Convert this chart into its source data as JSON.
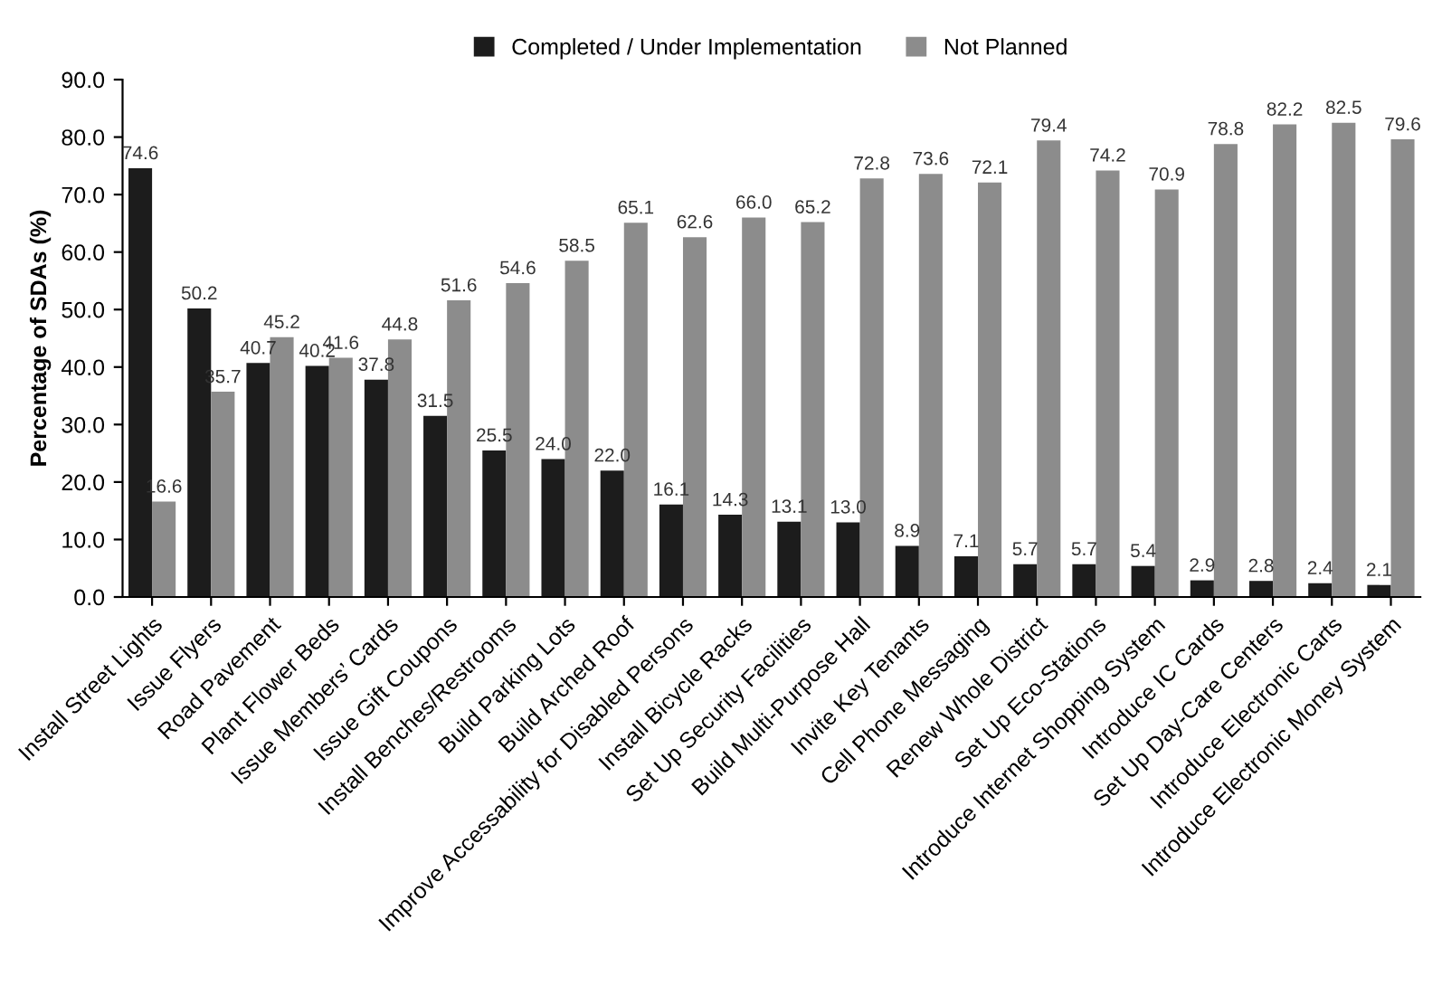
{
  "chart_data": {
    "type": "bar",
    "ylabel": "Percentage of SDAs (%)",
    "categories": [
      "Install Street Lights",
      "Issue Flyers",
      "Road Pavement",
      "Plant Flower Beds",
      "Issue Members’ Cards",
      "Issue Gift Coupons",
      "Install Benches/Restrooms",
      "Build Parking Lots",
      "Build Arched Roof",
      "Improve Accessability for Disabled Persons",
      "Install Bicycle Racks",
      "Set Up Security Facilities",
      "Build Multi-Purpose Hall",
      "Invite Key Tenants",
      "Cell Phone Messaging",
      "Renew Whole District",
      "Set Up Eco-Stations",
      "Introduce Internet Shopping System",
      "Introduce IC Cards",
      "Set Up Day-Care Centers",
      "Introduce Electronic Carts",
      "Introduce Electronic Money System"
    ],
    "series": [
      {
        "name": "Completed / Under Implementation",
        "color": "#1c1c1c",
        "values": [
          74.6,
          50.2,
          40.7,
          40.2,
          37.8,
          31.5,
          25.5,
          24.0,
          22.0,
          16.1,
          14.3,
          13.1,
          13.0,
          8.9,
          7.1,
          5.7,
          5.7,
          5.4,
          2.9,
          2.8,
          2.4,
          2.1
        ],
        "value_labels": [
          "74.6",
          "50.2",
          "40.7",
          "40.2",
          "37.8",
          "31.5",
          "25.5",
          "24.0",
          "22.0",
          "16.1",
          "14.3",
          "13.1",
          "13.0",
          "8.9",
          "7.1",
          "5.7",
          "5.7",
          "5.4",
          "2.9",
          "2.8",
          "2.4",
          "2.1"
        ]
      },
      {
        "name": "Not Planned",
        "color": "#8c8c8c",
        "values": [
          16.6,
          35.7,
          45.2,
          41.6,
          44.8,
          51.6,
          54.6,
          58.5,
          65.1,
          62.6,
          66.0,
          65.2,
          72.8,
          73.6,
          72.1,
          79.4,
          74.2,
          70.9,
          78.8,
          82.2,
          82.5,
          79.6
        ],
        "value_labels": [
          "16.6",
          "35.7",
          "45.2",
          "41.6",
          "44.8",
          "51.6",
          "54.6",
          "58.5",
          "65.1",
          "62.6",
          "66.0",
          "65.2",
          "72.8",
          "73.6",
          "72.1",
          "79.4",
          "74.2",
          "70.9",
          "78.8",
          "82.2",
          "82.5",
          "79.6"
        ]
      }
    ],
    "ylim": [
      0,
      90
    ],
    "yticks": [
      {
        "value": 0,
        "label": "0.0"
      },
      {
        "value": 10,
        "label": "10.0"
      },
      {
        "value": 20,
        "label": "20.0"
      },
      {
        "value": 30,
        "label": "30.0"
      },
      {
        "value": 40,
        "label": "40.0"
      },
      {
        "value": 50,
        "label": "50.0"
      },
      {
        "value": 60,
        "label": "60.0"
      },
      {
        "value": 70,
        "label": "70.0"
      },
      {
        "value": 80,
        "label": "80.0"
      },
      {
        "value": 90,
        "label": "90.0"
      }
    ],
    "grid": false,
    "legend": "top"
  }
}
